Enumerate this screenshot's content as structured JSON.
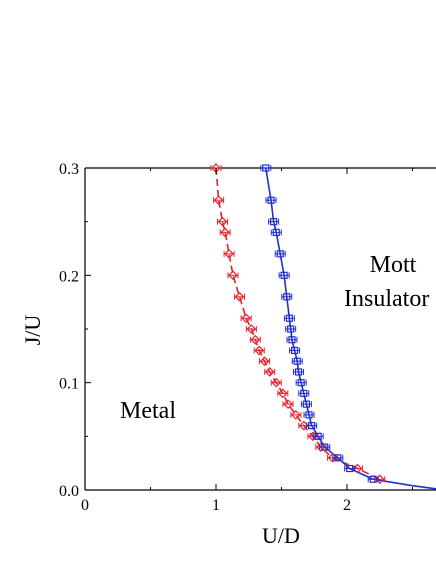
{
  "chart_data": {
    "type": "scatter",
    "xlabel": "U/D",
    "ylabel": "J/U",
    "xlim": [
      0,
      2.7
    ],
    "ylim": [
      0,
      0.3
    ],
    "x_ticks": [
      "0",
      "1",
      "2"
    ],
    "y_ticks": [
      "0.0",
      "0.1",
      "0.2",
      "0.3"
    ],
    "annotations": {
      "metal": "Metal",
      "mott_line1": "Mott",
      "mott_line2": "Insulator"
    },
    "colors": {
      "red": "#e8202a",
      "blue": "#1f2fd0"
    },
    "series": [
      {
        "color": "red",
        "marker": "diamond",
        "line": "dashed",
        "points": [
          [
            1.0,
            0.3
          ],
          [
            1.02,
            0.27
          ],
          [
            1.05,
            0.25
          ],
          [
            1.07,
            0.24
          ],
          [
            1.1,
            0.22
          ],
          [
            1.13,
            0.2
          ],
          [
            1.18,
            0.18
          ],
          [
            1.23,
            0.16
          ],
          [
            1.27,
            0.15
          ],
          [
            1.3,
            0.14
          ],
          [
            1.33,
            0.13
          ],
          [
            1.37,
            0.12
          ],
          [
            1.41,
            0.11
          ],
          [
            1.46,
            0.1
          ],
          [
            1.51,
            0.09
          ],
          [
            1.55,
            0.08
          ],
          [
            1.61,
            0.07
          ],
          [
            1.67,
            0.06
          ],
          [
            1.74,
            0.05
          ],
          [
            1.8,
            0.04
          ],
          [
            1.89,
            0.03
          ],
          [
            2.08,
            0.02
          ],
          [
            2.25,
            0.01
          ]
        ]
      },
      {
        "color": "blue",
        "marker": "square",
        "line": "solid",
        "points": [
          [
            1.38,
            0.3
          ],
          [
            1.42,
            0.27
          ],
          [
            1.44,
            0.25
          ],
          [
            1.46,
            0.24
          ],
          [
            1.49,
            0.22
          ],
          [
            1.52,
            0.2
          ],
          [
            1.54,
            0.18
          ],
          [
            1.56,
            0.16
          ],
          [
            1.57,
            0.15
          ],
          [
            1.58,
            0.14
          ],
          [
            1.6,
            0.13
          ],
          [
            1.62,
            0.12
          ],
          [
            1.63,
            0.11
          ],
          [
            1.65,
            0.1
          ],
          [
            1.67,
            0.09
          ],
          [
            1.69,
            0.08
          ],
          [
            1.71,
            0.07
          ],
          [
            1.73,
            0.06
          ],
          [
            1.78,
            0.05
          ],
          [
            1.83,
            0.04
          ],
          [
            1.93,
            0.03
          ],
          [
            2.02,
            0.02
          ],
          [
            2.2,
            0.01
          ]
        ]
      }
    ]
  }
}
